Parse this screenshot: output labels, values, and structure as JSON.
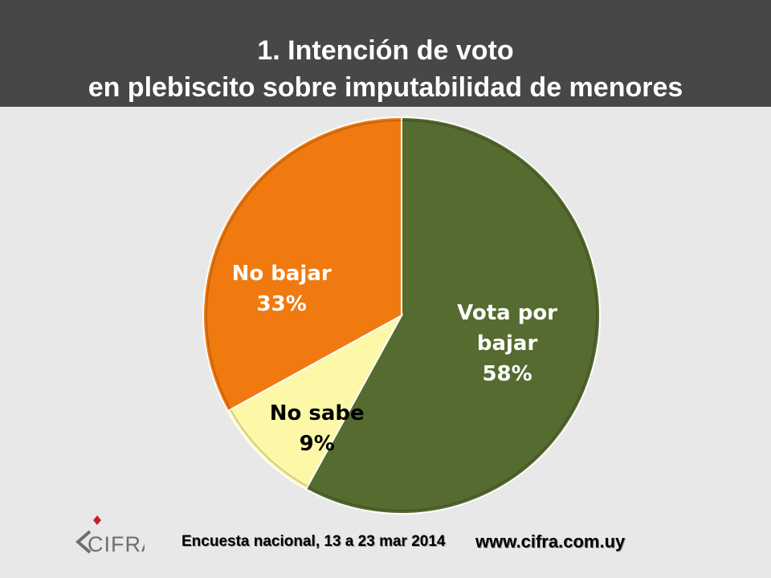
{
  "header": {
    "title_line1": "1.  Intención de voto",
    "title_line2": "en plebiscito sobre imputabilidad de menores"
  },
  "chart_data": {
    "type": "pie",
    "title": "1.  Intención de voto en plebiscito sobre imputabilidad de menores",
    "slices": [
      {
        "label_lines": [
          "Vota por",
          "bajar"
        ],
        "pct_label": "58%",
        "value": 58,
        "color": "#556b2f",
        "text_color": "#ffffff"
      },
      {
        "label_lines": [
          "No sabe"
        ],
        "pct_label": "9%",
        "value": 9,
        "color": "#fcf8a8",
        "text_color": "#000000"
      },
      {
        "label_lines": [
          "No bajar"
        ],
        "pct_label": "33%",
        "value": 33,
        "color": "#f07a10",
        "text_color": "#ffffff"
      }
    ]
  },
  "footer": {
    "logo_text": "CIFRA",
    "survey": "Encuesta nacional, 13 a 23 mar 2014",
    "url": "www.cifra.com.uy"
  }
}
